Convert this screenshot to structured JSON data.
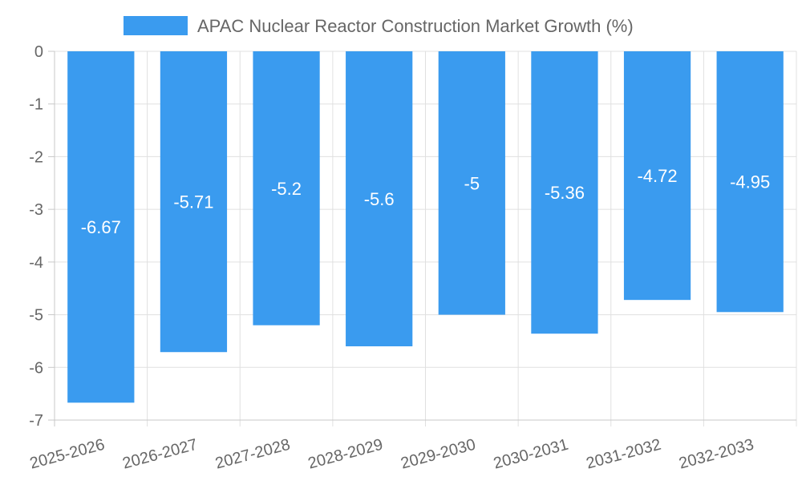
{
  "chart_data": {
    "type": "bar",
    "title": "",
    "xlabel": "",
    "ylabel": "",
    "categories": [
      "2025-2026",
      "2026-2027",
      "2027-2028",
      "2028-2029",
      "2029-2030",
      "2030-2031",
      "2031-2032",
      "2032-2033"
    ],
    "series": [
      {
        "name": "APAC Nuclear Reactor Construction Market Growth (%)",
        "values": [
          -6.67,
          -5.71,
          -5.2,
          -5.6,
          -5,
          -5.36,
          -4.72,
          -4.95
        ],
        "color": "#3a9bef"
      }
    ],
    "ylim": [
      -7,
      0
    ],
    "yticks": [
      0,
      -1,
      -2,
      -3,
      -4,
      -5,
      -6,
      -7
    ],
    "grid": true,
    "legend": "top-center",
    "data_labels": true
  }
}
